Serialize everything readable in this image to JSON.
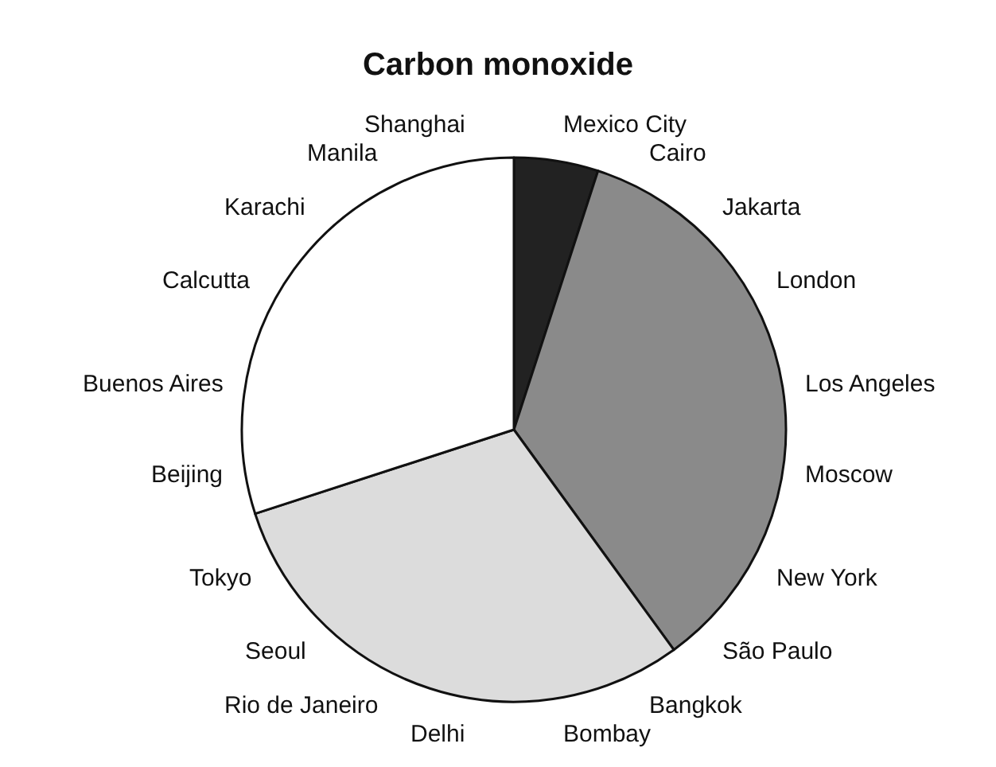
{
  "chart_data": {
    "type": "pie",
    "title": "Carbon monoxide",
    "categories": [
      null,
      null,
      null,
      null
    ],
    "values": [
      5,
      35,
      30,
      30
    ],
    "colors": [
      "#222222",
      "#8a8a8a",
      "#dcdcdc",
      "#ffffff"
    ],
    "annotations": [
      "Mexico City",
      "Cairo",
      "Jakarta",
      "London",
      "Los Angeles",
      "Moscow",
      "New York",
      "São Paulo",
      "Bangkok",
      "Bombay",
      "Delhi",
      "Rio de Janeiro",
      "Seoul",
      "Tokyo",
      "Beijing",
      "Buenos Aires",
      "Calcutta",
      "Karachi",
      "Manila",
      "Shanghai"
    ]
  }
}
